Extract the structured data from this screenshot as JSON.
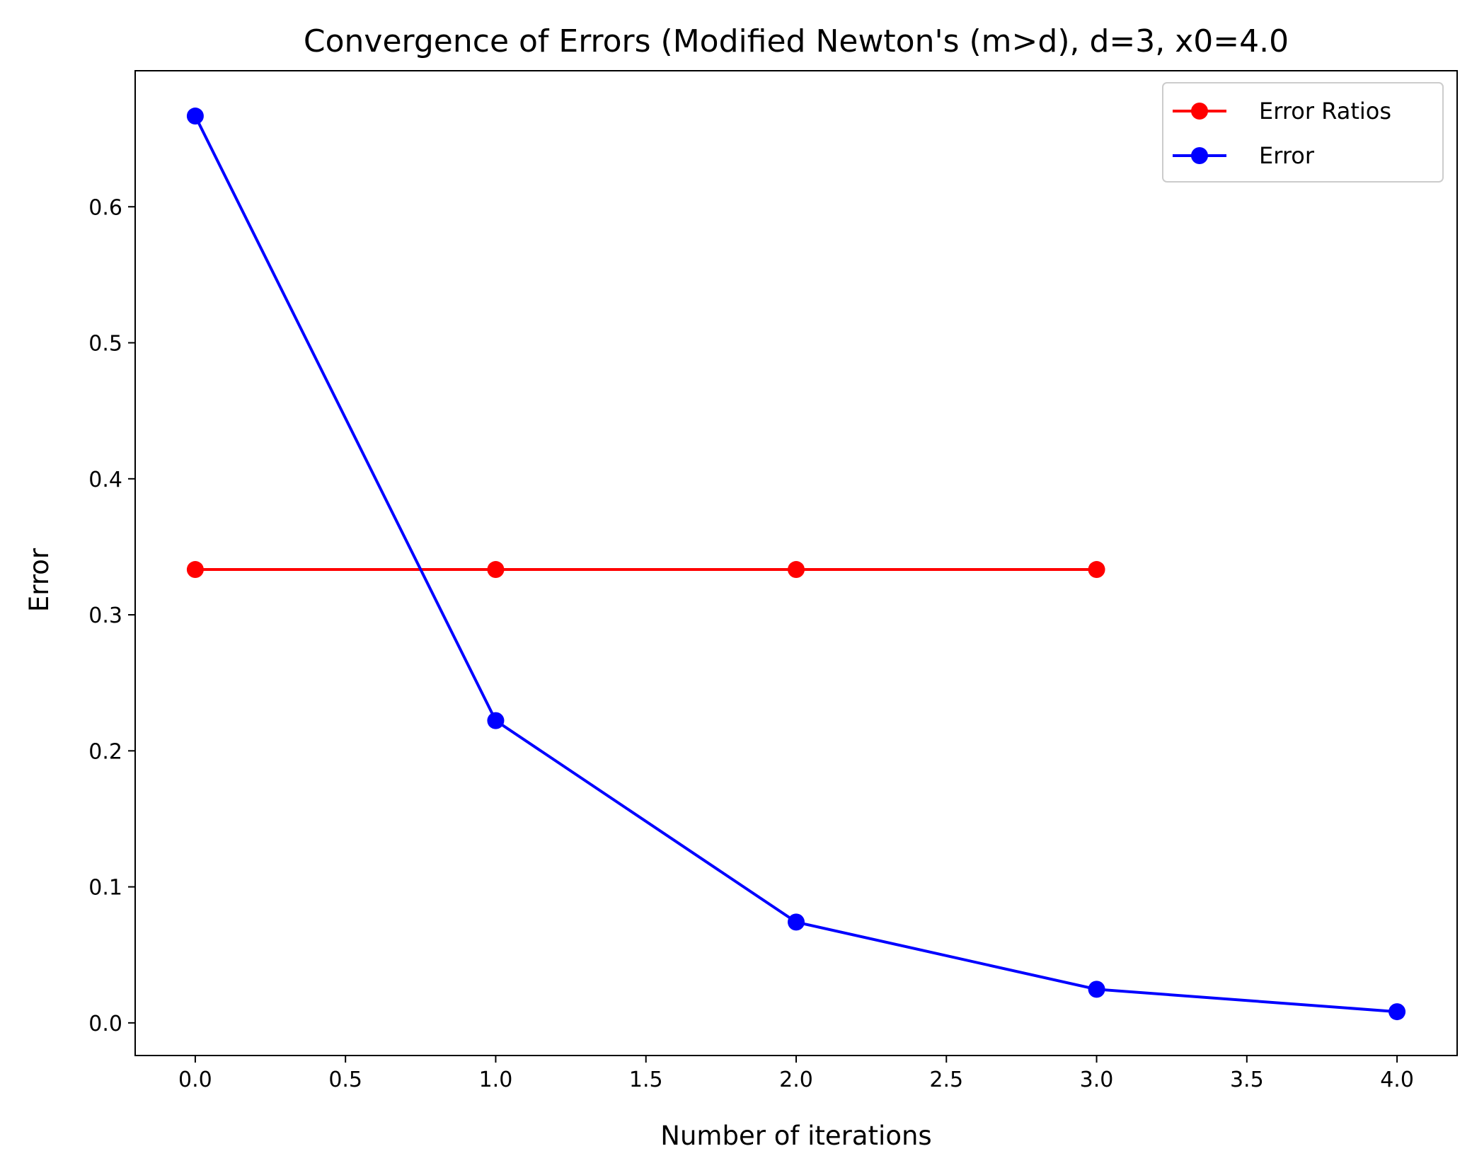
{
  "chart_data": {
    "type": "line",
    "title": "Convergence of Errors (Modified Newton's (m>d), d=3, x0=4.0",
    "xlabel": "Number of iterations",
    "ylabel": "Error",
    "xlim": [
      -0.2,
      4.2
    ],
    "ylim": [
      -0.024,
      0.7
    ],
    "xticks": [
      0.0,
      0.5,
      1.0,
      1.5,
      2.0,
      2.5,
      3.0,
      3.5,
      4.0
    ],
    "xtick_labels": [
      "0.0",
      "0.5",
      "1.0",
      "1.5",
      "2.0",
      "2.5",
      "3.0",
      "3.5",
      "4.0"
    ],
    "yticks": [
      0.0,
      0.1,
      0.2,
      0.3,
      0.4,
      0.5,
      0.6
    ],
    "ytick_labels": [
      "0.0",
      "0.1",
      "0.2",
      "0.3",
      "0.4",
      "0.5",
      "0.6"
    ],
    "grid": false,
    "legend_position": "top-right",
    "series": [
      {
        "name": "Error Ratios",
        "color": "#ff0000",
        "x": [
          0,
          1,
          2,
          3
        ],
        "y": [
          0.3333,
          0.3333,
          0.3333,
          0.3333
        ]
      },
      {
        "name": "Error",
        "color": "#0000ff",
        "x": [
          0,
          1,
          2,
          3,
          4
        ],
        "y": [
          0.6667,
          0.2222,
          0.0741,
          0.0247,
          0.0082
        ]
      }
    ]
  }
}
